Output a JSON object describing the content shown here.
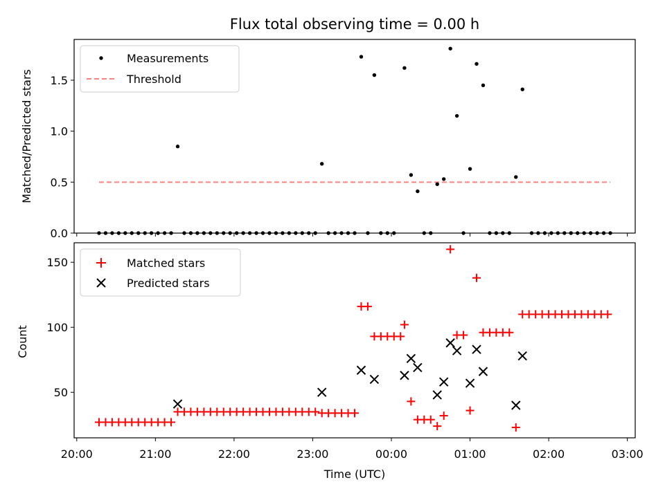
{
  "chart_data": [
    {
      "type": "scatter",
      "title": "Flux total observing time = 0.00 h",
      "ylabel": "Matched/Predicted stars",
      "xlabel": "",
      "ylim": [
        0,
        1.9
      ],
      "yticks": [
        "0.0",
        "0.5",
        "1.0",
        "1.5"
      ],
      "yticks_values": [
        0.0,
        0.5,
        1.0,
        1.5
      ],
      "legend": {
        "position": "upper-left",
        "entries": [
          "Measurements",
          "Threshold"
        ]
      },
      "threshold": {
        "name": "Threshold",
        "value": 0.5,
        "color": "#ff8080",
        "x_range": [
          "20:17",
          "02:47"
        ]
      },
      "series": [
        {
          "name": "Measurements",
          "color": "#000000",
          "points": [
            [
              "20:17",
              0
            ],
            [
              "20:22",
              0
            ],
            [
              "20:27",
              0
            ],
            [
              "20:32",
              0
            ],
            [
              "20:37",
              0
            ],
            [
              "20:42",
              0
            ],
            [
              "20:47",
              0
            ],
            [
              "20:52",
              0
            ],
            [
              "20:57",
              0
            ],
            [
              "21:02",
              0
            ],
            [
              "21:07",
              0
            ],
            [
              "21:12",
              0
            ],
            [
              "21:17",
              0.85
            ],
            [
              "21:22",
              0
            ],
            [
              "21:27",
              0
            ],
            [
              "21:32",
              0
            ],
            [
              "21:37",
              0
            ],
            [
              "21:42",
              0
            ],
            [
              "21:47",
              0
            ],
            [
              "21:52",
              0
            ],
            [
              "21:57",
              0
            ],
            [
              "22:02",
              0
            ],
            [
              "22:07",
              0
            ],
            [
              "22:12",
              0
            ],
            [
              "22:17",
              0
            ],
            [
              "22:22",
              0
            ],
            [
              "22:27",
              0
            ],
            [
              "22:32",
              0
            ],
            [
              "22:37",
              0
            ],
            [
              "22:42",
              0
            ],
            [
              "22:47",
              0
            ],
            [
              "22:52",
              0
            ],
            [
              "22:57",
              0
            ],
            [
              "23:02",
              0
            ],
            [
              "23:07",
              0.68
            ],
            [
              "23:12",
              0
            ],
            [
              "23:17",
              0
            ],
            [
              "23:22",
              0
            ],
            [
              "23:27",
              0
            ],
            [
              "23:32",
              0
            ],
            [
              "23:37",
              1.73
            ],
            [
              "23:42",
              0
            ],
            [
              "23:47",
              1.55
            ],
            [
              "23:52",
              0
            ],
            [
              "23:57",
              0
            ],
            [
              "00:02",
              0
            ],
            [
              "00:10",
              1.62
            ],
            [
              "00:15",
              0.57
            ],
            [
              "00:20",
              0.41
            ],
            [
              "00:25",
              0
            ],
            [
              "00:30",
              0
            ],
            [
              "00:35",
              0.48
            ],
            [
              "00:40",
              0.53
            ],
            [
              "00:45",
              1.81
            ],
            [
              "00:50",
              1.15
            ],
            [
              "00:55",
              0
            ],
            [
              "01:00",
              0.63
            ],
            [
              "01:05",
              1.66
            ],
            [
              "01:10",
              1.45
            ],
            [
              "01:15",
              0
            ],
            [
              "01:20",
              0
            ],
            [
              "01:25",
              0
            ],
            [
              "01:30",
              0
            ],
            [
              "01:35",
              0.55
            ],
            [
              "01:40",
              1.41
            ],
            [
              "01:47",
              0
            ],
            [
              "01:52",
              0
            ],
            [
              "01:57",
              0
            ],
            [
              "02:02",
              0
            ],
            [
              "02:07",
              0
            ],
            [
              "02:12",
              0
            ],
            [
              "02:17",
              0
            ],
            [
              "02:22",
              0
            ],
            [
              "02:27",
              0
            ],
            [
              "02:32",
              0
            ],
            [
              "02:37",
              0
            ],
            [
              "02:42",
              0
            ],
            [
              "02:47",
              0
            ]
          ]
        }
      ]
    },
    {
      "type": "scatter",
      "title": "",
      "ylabel": "Count",
      "xlabel": "Time (UTC)",
      "ylim": [
        15,
        165
      ],
      "yticks": [
        "50",
        "100",
        "150"
      ],
      "yticks_values": [
        50,
        100,
        150
      ],
      "xlim": [
        "19:58",
        "03:06"
      ],
      "xticks": [
        "20:00",
        "21:00",
        "22:00",
        "23:00",
        "00:00",
        "01:00",
        "02:00",
        "03:00"
      ],
      "legend": {
        "position": "upper-left",
        "entries": [
          "Matched stars",
          "Predicted stars"
        ]
      },
      "series": [
        {
          "name": "Matched stars",
          "color": "#ff0000",
          "marker": "plus",
          "points": [
            [
              "20:17",
              27
            ],
            [
              "20:22",
              27
            ],
            [
              "20:27",
              27
            ],
            [
              "20:32",
              27
            ],
            [
              "20:37",
              27
            ],
            [
              "20:42",
              27
            ],
            [
              "20:47",
              27
            ],
            [
              "20:52",
              27
            ],
            [
              "20:57",
              27
            ],
            [
              "21:02",
              27
            ],
            [
              "21:07",
              27
            ],
            [
              "21:12",
              27
            ],
            [
              "21:17",
              35
            ],
            [
              "21:22",
              35
            ],
            [
              "21:27",
              35
            ],
            [
              "21:32",
              35
            ],
            [
              "21:37",
              35
            ],
            [
              "21:42",
              35
            ],
            [
              "21:47",
              35
            ],
            [
              "21:52",
              35
            ],
            [
              "21:57",
              35
            ],
            [
              "22:02",
              35
            ],
            [
              "22:07",
              35
            ],
            [
              "22:12",
              35
            ],
            [
              "22:17",
              35
            ],
            [
              "22:22",
              35
            ],
            [
              "22:27",
              35
            ],
            [
              "22:32",
              35
            ],
            [
              "22:37",
              35
            ],
            [
              "22:42",
              35
            ],
            [
              "22:47",
              35
            ],
            [
              "22:52",
              35
            ],
            [
              "22:57",
              35
            ],
            [
              "23:02",
              35
            ],
            [
              "23:07",
              34
            ],
            [
              "23:12",
              34
            ],
            [
              "23:17",
              34
            ],
            [
              "23:22",
              34
            ],
            [
              "23:27",
              34
            ],
            [
              "23:32",
              34
            ],
            [
              "23:37",
              116
            ],
            [
              "23:42",
              116
            ],
            [
              "23:47",
              93
            ],
            [
              "23:52",
              93
            ],
            [
              "23:57",
              93
            ],
            [
              "00:02",
              93
            ],
            [
              "00:07",
              93
            ],
            [
              "00:10",
              102
            ],
            [
              "00:15",
              43
            ],
            [
              "00:20",
              29
            ],
            [
              "00:25",
              29
            ],
            [
              "00:30",
              29
            ],
            [
              "00:35",
              24
            ],
            [
              "00:40",
              32
            ],
            [
              "00:45",
              160
            ],
            [
              "00:50",
              94
            ],
            [
              "00:55",
              94
            ],
            [
              "01:00",
              36
            ],
            [
              "01:05",
              138
            ],
            [
              "01:10",
              96
            ],
            [
              "01:15",
              96
            ],
            [
              "01:20",
              96
            ],
            [
              "01:25",
              96
            ],
            [
              "01:30",
              96
            ],
            [
              "01:35",
              23
            ],
            [
              "01:40",
              110
            ],
            [
              "01:45",
              110
            ],
            [
              "01:50",
              110
            ],
            [
              "01:55",
              110
            ],
            [
              "02:00",
              110
            ],
            [
              "02:05",
              110
            ],
            [
              "02:10",
              110
            ],
            [
              "02:15",
              110
            ],
            [
              "02:20",
              110
            ],
            [
              "02:25",
              110
            ],
            [
              "02:30",
              110
            ],
            [
              "02:35",
              110
            ],
            [
              "02:40",
              110
            ],
            [
              "02:45",
              110
            ]
          ]
        },
        {
          "name": "Predicted stars",
          "color": "#000000",
          "marker": "x",
          "points": [
            [
              "21:17",
              41
            ],
            [
              "23:07",
              50
            ],
            [
              "23:37",
              67
            ],
            [
              "23:47",
              60
            ],
            [
              "00:10",
              63
            ],
            [
              "00:15",
              76
            ],
            [
              "00:20",
              69
            ],
            [
              "00:35",
              48
            ],
            [
              "00:40",
              58
            ],
            [
              "00:45",
              88
            ],
            [
              "00:50",
              82
            ],
            [
              "01:00",
              57
            ],
            [
              "01:05",
              83
            ],
            [
              "01:10",
              66
            ],
            [
              "01:35",
              40
            ],
            [
              "01:40",
              78
            ]
          ]
        }
      ]
    }
  ]
}
